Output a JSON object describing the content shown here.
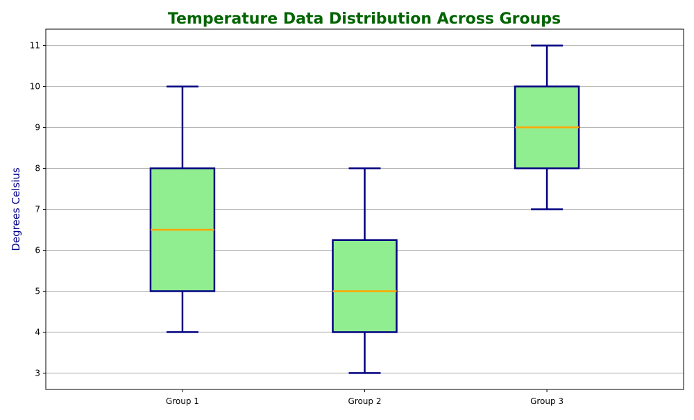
{
  "chart_data": {
    "type": "box",
    "title": "Temperature Data Distribution Across Groups",
    "xlabel": "",
    "ylabel": "Degrees Celsius",
    "categories": [
      "Group 1",
      "Group 2",
      "Group 3"
    ],
    "boxes": [
      {
        "category": "Group 1",
        "min": 4,
        "q1": 5,
        "median": 6.5,
        "q3": 8,
        "max": 10
      },
      {
        "category": "Group 2",
        "min": 3,
        "q1": 4,
        "median": 5,
        "q3": 6.25,
        "max": 8
      },
      {
        "category": "Group 3",
        "min": 7,
        "q1": 8,
        "median": 9,
        "q3": 10,
        "max": 11
      }
    ],
    "ylim": [
      2.6,
      11.4
    ],
    "yticks": [
      3,
      4,
      5,
      6,
      7,
      8,
      9,
      10,
      11
    ],
    "grid": {
      "y": true,
      "x": false
    },
    "colors": {
      "title": "#006400",
      "ylabel": "#00008B",
      "box_fill": "#90EE90",
      "box_edge": "#000080",
      "median": "#FFA500",
      "whisker": "#000080",
      "grid": "#b0b0b0"
    }
  }
}
